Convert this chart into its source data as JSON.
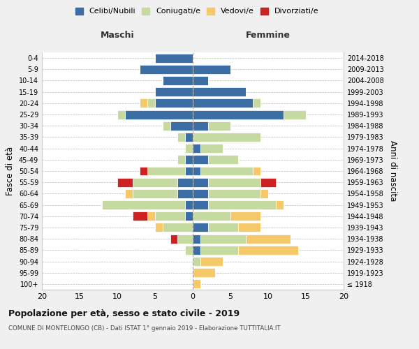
{
  "age_groups": [
    "100+",
    "95-99",
    "90-94",
    "85-89",
    "80-84",
    "75-79",
    "70-74",
    "65-69",
    "60-64",
    "55-59",
    "50-54",
    "45-49",
    "40-44",
    "35-39",
    "30-34",
    "25-29",
    "20-24",
    "15-19",
    "10-14",
    "5-9",
    "0-4"
  ],
  "birth_years": [
    "≤ 1918",
    "1919-1923",
    "1924-1928",
    "1929-1933",
    "1934-1938",
    "1939-1943",
    "1944-1948",
    "1949-1953",
    "1954-1958",
    "1959-1963",
    "1964-1968",
    "1969-1973",
    "1974-1978",
    "1979-1983",
    "1984-1988",
    "1989-1993",
    "1994-1998",
    "1999-2003",
    "2004-2008",
    "2009-2013",
    "2014-2018"
  ],
  "colors": {
    "celibi": "#3b6ea5",
    "coniugati": "#c5d9a0",
    "vedovi": "#f5c96a",
    "divorziati": "#cc2222"
  },
  "maschi": {
    "celibi": [
      0,
      0,
      0,
      0,
      0,
      0,
      1,
      1,
      2,
      2,
      1,
      1,
      0,
      1,
      3,
      9,
      5,
      5,
      4,
      7,
      5
    ],
    "coniugati": [
      0,
      0,
      0,
      1,
      2,
      4,
      4,
      11,
      6,
      6,
      5,
      1,
      1,
      1,
      1,
      1,
      1,
      0,
      0,
      0,
      0
    ],
    "vedovi": [
      0,
      0,
      0,
      0,
      0,
      1,
      1,
      0,
      1,
      0,
      0,
      0,
      0,
      0,
      0,
      0,
      1,
      0,
      0,
      0,
      0
    ],
    "divorziati": [
      0,
      0,
      0,
      0,
      1,
      0,
      2,
      0,
      0,
      2,
      1,
      0,
      0,
      0,
      0,
      0,
      0,
      0,
      0,
      0,
      0
    ]
  },
  "femmine": {
    "celibi": [
      0,
      0,
      0,
      1,
      1,
      2,
      0,
      2,
      2,
      2,
      1,
      2,
      1,
      0,
      2,
      12,
      8,
      7,
      2,
      5,
      0
    ],
    "coniugati": [
      0,
      0,
      1,
      5,
      6,
      4,
      5,
      9,
      7,
      7,
      7,
      4,
      3,
      9,
      3,
      3,
      1,
      0,
      0,
      0,
      0
    ],
    "vedovi": [
      1,
      3,
      3,
      8,
      6,
      3,
      4,
      1,
      1,
      0,
      1,
      0,
      0,
      0,
      0,
      0,
      0,
      0,
      0,
      0,
      0
    ],
    "divorziati": [
      0,
      0,
      0,
      0,
      0,
      0,
      0,
      0,
      0,
      2,
      0,
      0,
      0,
      0,
      0,
      0,
      0,
      0,
      0,
      0,
      0
    ]
  },
  "xlim": 20,
  "title": "Popolazione per età, sesso e stato civile - 2019",
  "subtitle": "COMUNE DI MONTELONGO (CB) - Dati ISTAT 1° gennaio 2019 - Elaborazione TUTTITALIA.IT",
  "ylabel_left": "Fasce di età",
  "ylabel_right": "Anni di nascita",
  "xlabel_left": "Maschi",
  "xlabel_right": "Femmine",
  "legend_labels": [
    "Celibi/Nubili",
    "Coniugati/e",
    "Vedovi/e",
    "Divorziati/e"
  ],
  "bg_color": "#f0f0f0",
  "plot_bg_color": "#ffffff"
}
